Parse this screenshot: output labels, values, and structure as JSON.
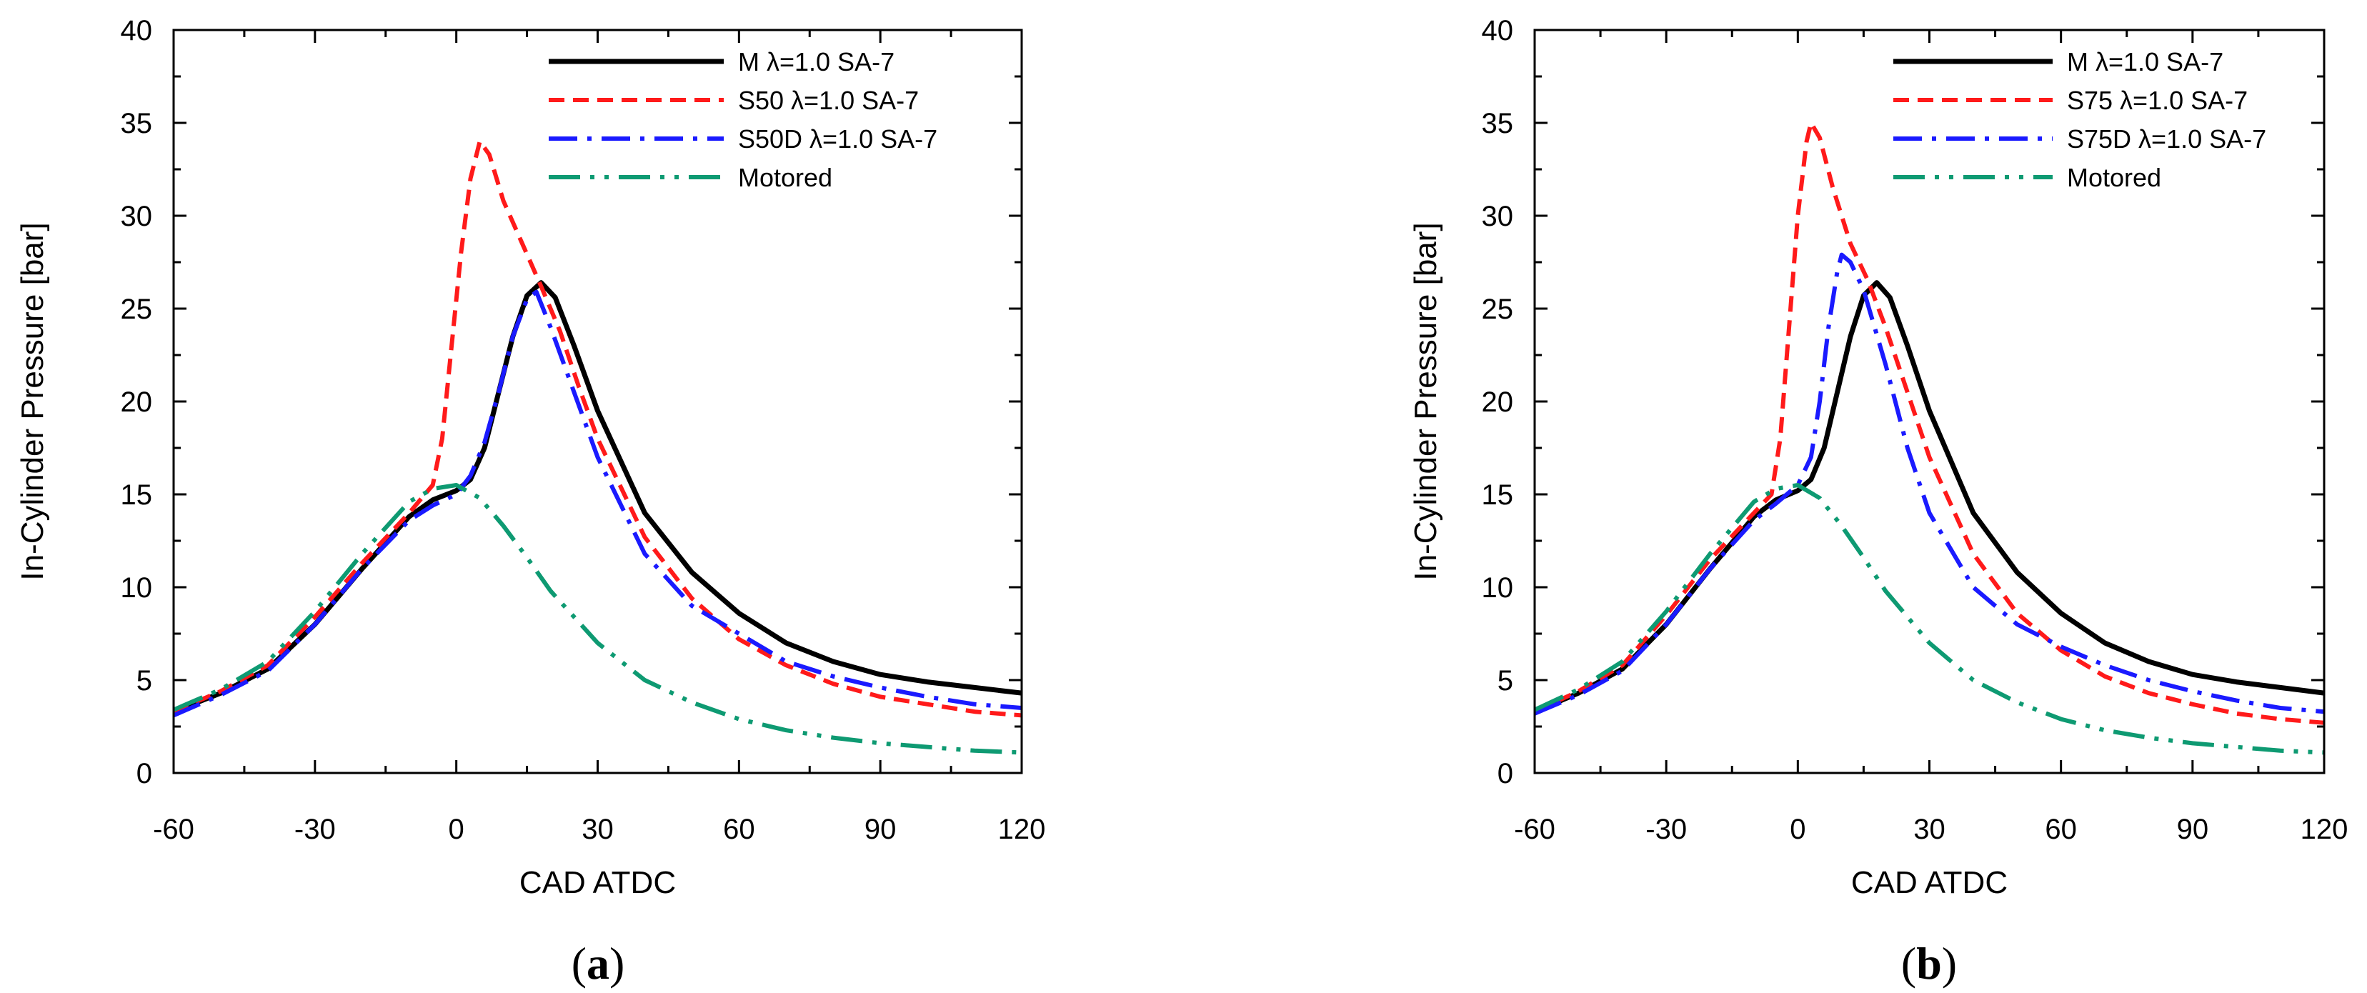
{
  "chart_data": [
    {
      "type": "line",
      "panel_label": "a",
      "xlabel": "CAD ATDC",
      "ylabel": "In-Cylinder Pressure [bar]",
      "xlim": [
        -60,
        120
      ],
      "ylim": [
        0,
        40
      ],
      "xticks": [
        -60,
        -30,
        0,
        30,
        60,
        90,
        120
      ],
      "yticks": [
        0,
        5,
        10,
        15,
        20,
        25,
        30,
        35,
        40
      ],
      "legend_position": "top-right",
      "series": [
        {
          "name": "M λ=1.0 SA-7",
          "color": "#000000",
          "style": "solid",
          "points": [
            [
              -60,
              3.3
            ],
            [
              -50,
              4.3
            ],
            [
              -40,
              5.6
            ],
            [
              -30,
              8.0
            ],
            [
              -20,
              11.0
            ],
            [
              -10,
              13.8
            ],
            [
              -5,
              14.7
            ],
            [
              0,
              15.2
            ],
            [
              3,
              15.8
            ],
            [
              6,
              17.5
            ],
            [
              9,
              20.5
            ],
            [
              12,
              23.5
            ],
            [
              15,
              25.7
            ],
            [
              18,
              26.4
            ],
            [
              21,
              25.6
            ],
            [
              25,
              23.0
            ],
            [
              30,
              19.5
            ],
            [
              40,
              14.0
            ],
            [
              50,
              10.8
            ],
            [
              60,
              8.6
            ],
            [
              70,
              7.0
            ],
            [
              80,
              6.0
            ],
            [
              90,
              5.3
            ],
            [
              100,
              4.9
            ],
            [
              110,
              4.6
            ],
            [
              120,
              4.3
            ]
          ]
        },
        {
          "name": "S50 λ=1.0 SA-7",
          "color": "#ff1a1a",
          "style": "dashed",
          "points": [
            [
              -60,
              3.3
            ],
            [
              -50,
              4.4
            ],
            [
              -40,
              5.8
            ],
            [
              -30,
              8.4
            ],
            [
              -20,
              11.3
            ],
            [
              -10,
              14.0
            ],
            [
              -5,
              15.5
            ],
            [
              -3,
              18.0
            ],
            [
              -1,
              23.0
            ],
            [
              1,
              28.0
            ],
            [
              3,
              32.0
            ],
            [
              5,
              34.0
            ],
            [
              7,
              33.3
            ],
            [
              10,
              30.8
            ],
            [
              14,
              28.5
            ],
            [
              18,
              26.2
            ],
            [
              22,
              23.8
            ],
            [
              26,
              20.8
            ],
            [
              30,
              18.0
            ],
            [
              40,
              12.7
            ],
            [
              50,
              9.4
            ],
            [
              60,
              7.2
            ],
            [
              70,
              5.8
            ],
            [
              80,
              4.8
            ],
            [
              90,
              4.1
            ],
            [
              100,
              3.7
            ],
            [
              110,
              3.3
            ],
            [
              120,
              3.1
            ]
          ]
        },
        {
          "name": "S50D λ=1.0 SA-7",
          "color": "#1a1aff",
          "style": "dashdot",
          "points": [
            [
              -60,
              3.1
            ],
            [
              -50,
              4.2
            ],
            [
              -40,
              5.5
            ],
            [
              -30,
              8.0
            ],
            [
              -20,
              11.0
            ],
            [
              -10,
              13.6
            ],
            [
              -5,
              14.4
            ],
            [
              0,
              15.0
            ],
            [
              3,
              16.0
            ],
            [
              6,
              17.8
            ],
            [
              9,
              20.5
            ],
            [
              12,
              23.5
            ],
            [
              15,
              25.5
            ],
            [
              17,
              25.9
            ],
            [
              20,
              24.0
            ],
            [
              25,
              20.5
            ],
            [
              30,
              17.0
            ],
            [
              40,
              11.8
            ],
            [
              50,
              9.0
            ],
            [
              60,
              7.5
            ],
            [
              70,
              6.0
            ],
            [
              80,
              5.2
            ],
            [
              90,
              4.6
            ],
            [
              100,
              4.1
            ],
            [
              110,
              3.7
            ],
            [
              120,
              3.5
            ]
          ]
        },
        {
          "name": "Motored",
          "color": "#0e9a72",
          "style": "dashdotdot",
          "points": [
            [
              -60,
              3.4
            ],
            [
              -50,
              4.5
            ],
            [
              -40,
              6.0
            ],
            [
              -30,
              8.7
            ],
            [
              -20,
              11.8
            ],
            [
              -10,
              14.6
            ],
            [
              -5,
              15.3
            ],
            [
              0,
              15.5
            ],
            [
              5,
              14.8
            ],
            [
              10,
              13.3
            ],
            [
              15,
              11.6
            ],
            [
              20,
              9.8
            ],
            [
              30,
              7.0
            ],
            [
              40,
              5.0
            ],
            [
              50,
              3.8
            ],
            [
              60,
              2.9
            ],
            [
              70,
              2.3
            ],
            [
              80,
              1.9
            ],
            [
              90,
              1.6
            ],
            [
              100,
              1.4
            ],
            [
              110,
              1.2
            ],
            [
              120,
              1.1
            ]
          ]
        }
      ]
    },
    {
      "type": "line",
      "panel_label": "b",
      "xlabel": "CAD ATDC",
      "ylabel": "In-Cylinder Pressure [bar]",
      "xlim": [
        -60,
        120
      ],
      "ylim": [
        0,
        40
      ],
      "xticks": [
        -60,
        -30,
        0,
        30,
        60,
        90,
        120
      ],
      "yticks": [
        0,
        5,
        10,
        15,
        20,
        25,
        30,
        35,
        40
      ],
      "legend_position": "top-right",
      "series": [
        {
          "name": "M λ=1.0 SA-7",
          "color": "#000000",
          "style": "solid",
          "points": [
            [
              -60,
              3.3
            ],
            [
              -50,
              4.3
            ],
            [
              -40,
              5.6
            ],
            [
              -30,
              8.0
            ],
            [
              -20,
              11.0
            ],
            [
              -10,
              13.8
            ],
            [
              -5,
              14.7
            ],
            [
              0,
              15.2
            ],
            [
              3,
              15.8
            ],
            [
              6,
              17.5
            ],
            [
              9,
              20.5
            ],
            [
              12,
              23.5
            ],
            [
              15,
              25.7
            ],
            [
              18,
              26.4
            ],
            [
              21,
              25.6
            ],
            [
              25,
              23.0
            ],
            [
              30,
              19.5
            ],
            [
              40,
              14.0
            ],
            [
              50,
              10.8
            ],
            [
              60,
              8.6
            ],
            [
              70,
              7.0
            ],
            [
              80,
              6.0
            ],
            [
              90,
              5.3
            ],
            [
              100,
              4.9
            ],
            [
              110,
              4.6
            ],
            [
              120,
              4.3
            ]
          ]
        },
        {
          "name": "S75 λ=1.0 SA-7",
          "color": "#ff1a1a",
          "style": "dashed",
          "points": [
            [
              -60,
              3.3
            ],
            [
              -50,
              4.4
            ],
            [
              -40,
              5.8
            ],
            [
              -30,
              8.5
            ],
            [
              -20,
              11.5
            ],
            [
              -10,
              14.0
            ],
            [
              -6,
              15.0
            ],
            [
              -4,
              18.0
            ],
            [
              -2,
              24.0
            ],
            [
              0,
              30.0
            ],
            [
              2,
              34.0
            ],
            [
              3,
              35.0
            ],
            [
              5,
              34.2
            ],
            [
              8,
              31.5
            ],
            [
              12,
              28.5
            ],
            [
              16,
              26.5
            ],
            [
              20,
              24.0
            ],
            [
              25,
              20.5
            ],
            [
              30,
              17.0
            ],
            [
              40,
              11.8
            ],
            [
              50,
              8.6
            ],
            [
              60,
              6.6
            ],
            [
              70,
              5.2
            ],
            [
              80,
              4.3
            ],
            [
              90,
              3.7
            ],
            [
              100,
              3.2
            ],
            [
              110,
              2.9
            ],
            [
              120,
              2.7
            ]
          ]
        },
        {
          "name": "S75D λ=1.0 SA-7",
          "color": "#1a1aff",
          "style": "dashdot",
          "points": [
            [
              -60,
              3.2
            ],
            [
              -50,
              4.2
            ],
            [
              -40,
              5.5
            ],
            [
              -30,
              8.0
            ],
            [
              -20,
              11.0
            ],
            [
              -10,
              13.6
            ],
            [
              -5,
              14.5
            ],
            [
              0,
              15.5
            ],
            [
              3,
              17.0
            ],
            [
              5,
              20.0
            ],
            [
              7,
              24.0
            ],
            [
              9,
              27.0
            ],
            [
              10,
              27.9
            ],
            [
              12,
              27.5
            ],
            [
              15,
              26.0
            ],
            [
              20,
              22.0
            ],
            [
              25,
              17.5
            ],
            [
              30,
              14.0
            ],
            [
              40,
              10.0
            ],
            [
              50,
              8.0
            ],
            [
              60,
              6.8
            ],
            [
              70,
              5.8
            ],
            [
              80,
              5.0
            ],
            [
              90,
              4.4
            ],
            [
              100,
              3.9
            ],
            [
              110,
              3.5
            ],
            [
              120,
              3.3
            ]
          ]
        },
        {
          "name": "Motored",
          "color": "#0e9a72",
          "style": "dashdotdot",
          "points": [
            [
              -60,
              3.4
            ],
            [
              -50,
              4.5
            ],
            [
              -40,
              6.0
            ],
            [
              -30,
              8.7
            ],
            [
              -20,
              11.8
            ],
            [
              -10,
              14.6
            ],
            [
              -5,
              15.3
            ],
            [
              0,
              15.5
            ],
            [
              5,
              14.8
            ],
            [
              10,
              13.3
            ],
            [
              15,
              11.6
            ],
            [
              20,
              9.8
            ],
            [
              30,
              7.0
            ],
            [
              40,
              5.0
            ],
            [
              50,
              3.8
            ],
            [
              60,
              2.9
            ],
            [
              70,
              2.3
            ],
            [
              80,
              1.9
            ],
            [
              90,
              1.6
            ],
            [
              100,
              1.4
            ],
            [
              110,
              1.2
            ],
            [
              120,
              1.1
            ]
          ]
        }
      ]
    }
  ]
}
